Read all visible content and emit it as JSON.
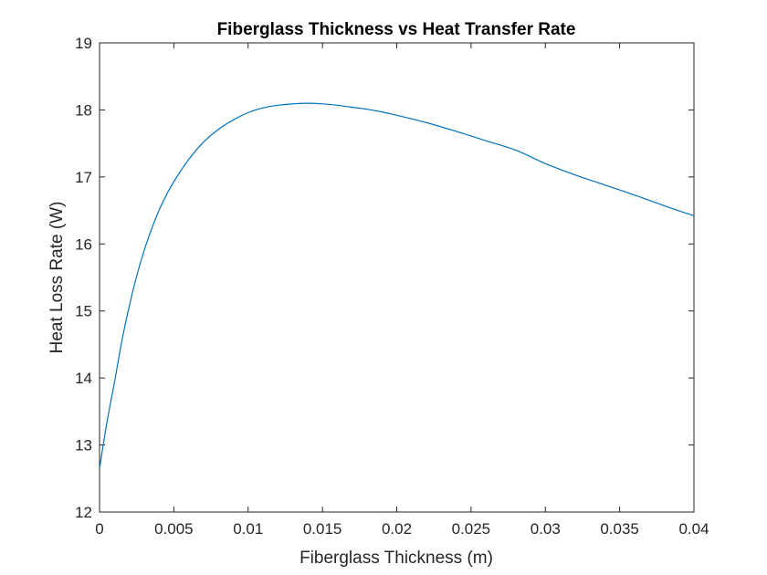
{
  "chart_data": {
    "type": "line",
    "title": "Fiberglass Thickness vs Heat Transfer Rate",
    "xlabel": "Fiberglass Thickness (m)",
    "ylabel": "Heat Loss Rate (W)",
    "xlim": [
      0,
      0.04
    ],
    "ylim": [
      12,
      19
    ],
    "xticks": [
      0,
      0.005,
      0.01,
      0.015,
      0.02,
      0.025,
      0.03,
      0.035,
      0.04
    ],
    "xtick_labels": [
      "0",
      "0.005",
      "0.01",
      "0.015",
      "0.02",
      "0.025",
      "0.03",
      "0.035",
      "0.04"
    ],
    "yticks": [
      12,
      13,
      14,
      15,
      16,
      17,
      18,
      19
    ],
    "ytick_labels": [
      "12",
      "13",
      "14",
      "15",
      "16",
      "17",
      "18",
      "19"
    ],
    "grid": false,
    "box": true,
    "series": [
      {
        "color": "#0072bd",
        "x": [
          0,
          0.0005,
          0.001,
          0.0015,
          0.002,
          0.0025,
          0.003,
          0.0035,
          0.004,
          0.0045,
          0.005,
          0.006,
          0.007,
          0.008,
          0.009,
          0.01,
          0.011,
          0.012,
          0.013,
          0.014,
          0.015,
          0.016,
          0.017,
          0.018,
          0.019,
          0.02,
          0.022,
          0.024,
          0.026,
          0.028,
          0.03,
          0.032,
          0.034,
          0.036,
          0.038,
          0.04
        ],
        "y": [
          12.65,
          13.34,
          13.93,
          14.55,
          15.07,
          15.52,
          15.9,
          16.22,
          16.5,
          16.73,
          16.93,
          17.26,
          17.52,
          17.71,
          17.85,
          17.96,
          18.03,
          18.07,
          18.09,
          18.1,
          18.09,
          18.07,
          18.04,
          18.01,
          17.97,
          17.92,
          17.81,
          17.68,
          17.54,
          17.4,
          17.2,
          17.03,
          16.88,
          16.73,
          16.57,
          16.42
        ]
      }
    ]
  }
}
